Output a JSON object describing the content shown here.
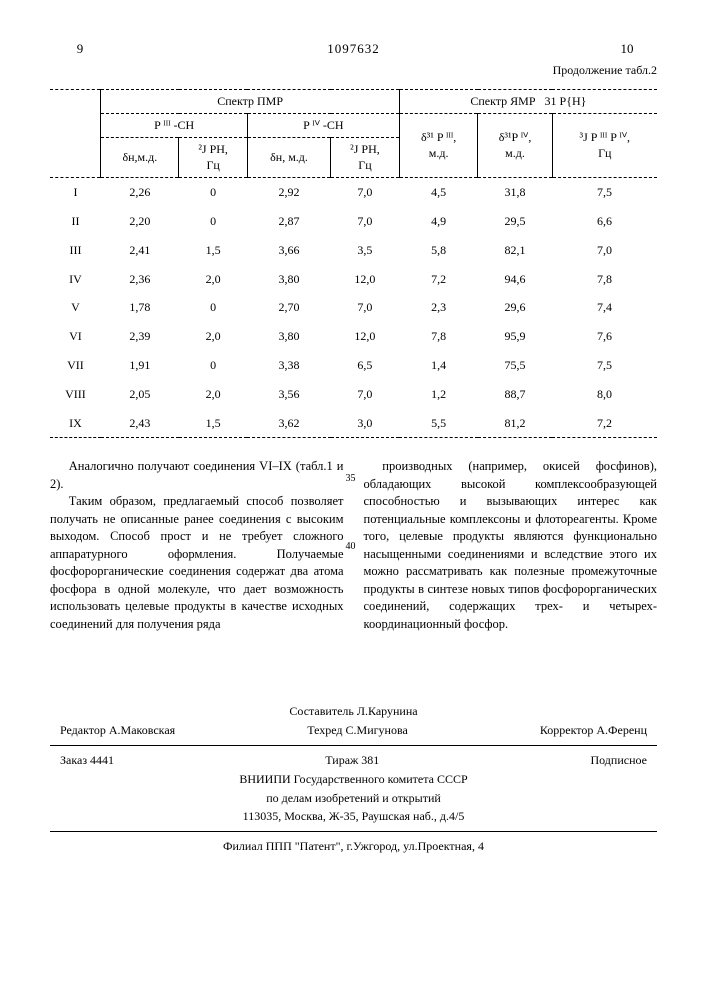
{
  "header": {
    "left_page": "9",
    "patent_number": "1097632",
    "right_page": "10",
    "continuation": "Продолжение табл.2"
  },
  "table": {
    "group_headers": {
      "pmr": "Спектр ПМР",
      "nmr": "Спектр ЯМР",
      "nmr_sup": "31 P{H}"
    },
    "sub1": {
      "p3ch": "P ᴵᴵᴵ -CH",
      "p4ch": "P ᴵⱽ -CH",
      "d31p3": "δ³¹ P ᴵᴵᴵ,",
      "d31p3_u": "м.д.",
      "d31p4": "δ³¹P ᴵⱽ,",
      "d31p4_u": "м.д.",
      "j3": "³J P ᴵᴵᴵ P ᴵⱽ,",
      "j3_u": "Гц"
    },
    "sub2": {
      "dh1": "δн,м.д.",
      "jph1a": "²J PH,",
      "jph1b": "Гц",
      "dh2": "δн, м.д.",
      "jph2a": "²J PH,",
      "jph2b": "Гц"
    },
    "rows": [
      {
        "label": "I",
        "c1": "2,26",
        "c2": "0",
        "c3": "2,92",
        "c4": "7,0",
        "c5": "4,5",
        "c6": "31,8",
        "c7": "7,5"
      },
      {
        "label": "II",
        "c1": "2,20",
        "c2": "0",
        "c3": "2,87",
        "c4": "7,0",
        "c5": "4,9",
        "c6": "29,5",
        "c7": "6,6"
      },
      {
        "label": "III",
        "c1": "2,41",
        "c2": "1,5",
        "c3": "3,66",
        "c4": "3,5",
        "c5": "5,8",
        "c6": "82,1",
        "c7": "7,0"
      },
      {
        "label": "IV",
        "c1": "2,36",
        "c2": "2,0",
        "c3": "3,80",
        "c4": "12,0",
        "c5": "7,2",
        "c6": "94,6",
        "c7": "7,8"
      },
      {
        "label": "V",
        "c1": "1,78",
        "c2": "0",
        "c3": "2,70",
        "c4": "7,0",
        "c5": "2,3",
        "c6": "29,6",
        "c7": "7,4"
      },
      {
        "label": "VI",
        "c1": "2,39",
        "c2": "2,0",
        "c3": "3,80",
        "c4": "12,0",
        "c5": "7,8",
        "c6": "95,9",
        "c7": "7,6"
      },
      {
        "label": "VII",
        "c1": "1,91",
        "c2": "0",
        "c3": "3,38",
        "c4": "6,5",
        "c5": "1,4",
        "c6": "75,5",
        "c7": "7,5"
      },
      {
        "label": "VIII",
        "c1": "2,05",
        "c2": "2,0",
        "c3": "3,56",
        "c4": "7,0",
        "c5": "1,2",
        "c6": "88,7",
        "c7": "8,0"
      },
      {
        "label": "IX",
        "c1": "2,43",
        "c2": "1,5",
        "c3": "3,62",
        "c4": "3,0",
        "c5": "5,5",
        "c6": "81,2",
        "c7": "7,2"
      }
    ]
  },
  "body": {
    "line35": "35",
    "line40": "40",
    "left_p1": "Аналогично получают соединения VI–IX (табл.1 и 2).",
    "left_p2": "Таким образом, предлагаемый способ позволяет получать не описанные ранее соединения с высоким выходом. Способ прост и не требует сложного аппаратурного оформления. Получаемые фосфорорганические соединения содержат два атома фосфора в одной молекуле, что дает возможность использовать целевые продукты в качестве исходных соединений для получения ряда",
    "right_p1": "производных (например, окисей фосфинов), обладающих высокой комплексообразующей способностью и вызывающих интерес как потенциальные комплексоны и флотореагенты. Кроме того, целевые продукты являются функционально насыщенными соединениями и вследствие этого их можно рассматривать как полезные промежуточные продукты в синтезе новых типов фосфорорганических соединений, содержащих трех- и четырех-координационный фосфор."
  },
  "footer": {
    "compiler": "Составитель Л.Карунина",
    "editor": "Редактор А.Маковская",
    "tech": "Техред С.Мигунова",
    "corrector": "Корректор А.Ференц",
    "order": "Заказ 4441",
    "tirazh": "Тираж 381",
    "subscribe": "Подписное",
    "org1": "ВНИИПИ Государственного комитета СССР",
    "org2": "по делам изобретений и открытий",
    "addr1": "113035, Москва, Ж-35, Раушская наб., д.4/5",
    "branch": "Филиал ППП \"Патент\", г.Ужгород, ул.Проектная, 4"
  }
}
